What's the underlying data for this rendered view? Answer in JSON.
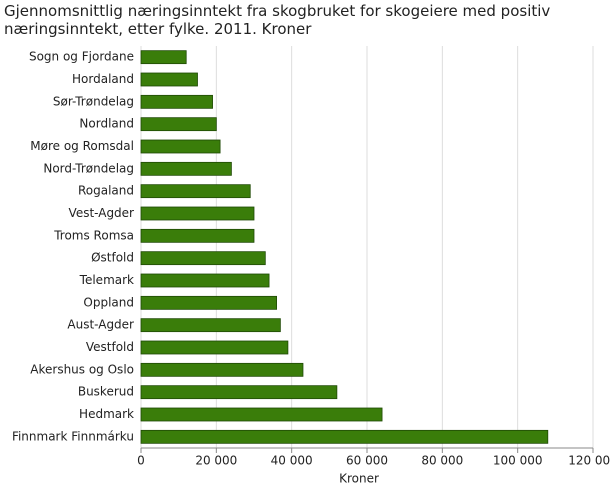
{
  "chart_data": {
    "type": "hbar",
    "title": "Gjennomsnittlig næringsinntekt fra skogbruket for skogeiere med positiv næringsinntekt, etter fylke. 2011. Kroner",
    "x_label": "Kroner",
    "categories": [
      "Sogn og Fjordane",
      "Hordaland",
      "Sør-Trøndelag",
      "Nordland",
      "Møre og Romsdal",
      "Nord-Trøndelag",
      "Rogaland",
      "Vest-Agder",
      "Troms Romsa",
      "Østfold",
      "Telemark",
      "Oppland",
      "Aust-Agder",
      "Vestfold",
      "Akershus og Oslo",
      "Buskerud",
      "Hedmark",
      "Finnmark Finnmárku"
    ],
    "values": [
      12000,
      15000,
      19000,
      20000,
      21000,
      24000,
      29000,
      30000,
      30000,
      33000,
      34000,
      36000,
      37000,
      39000,
      43000,
      52000,
      64000,
      108000
    ],
    "color": "#3a7d0a",
    "xlim": [
      0,
      120000
    ],
    "xticks": [
      0,
      {
        "value": 20000,
        "label": "20 000"
      },
      {
        "value": 40000,
        "label": "40 000"
      },
      {
        "value": 60000,
        "label": "60 000"
      },
      {
        "value": 80000,
        "label": "80 000"
      },
      {
        "value": 100000,
        "label": "100 000"
      },
      {
        "value": 120000,
        "label": "120 000"
      }
    ],
    "grid": true
  }
}
